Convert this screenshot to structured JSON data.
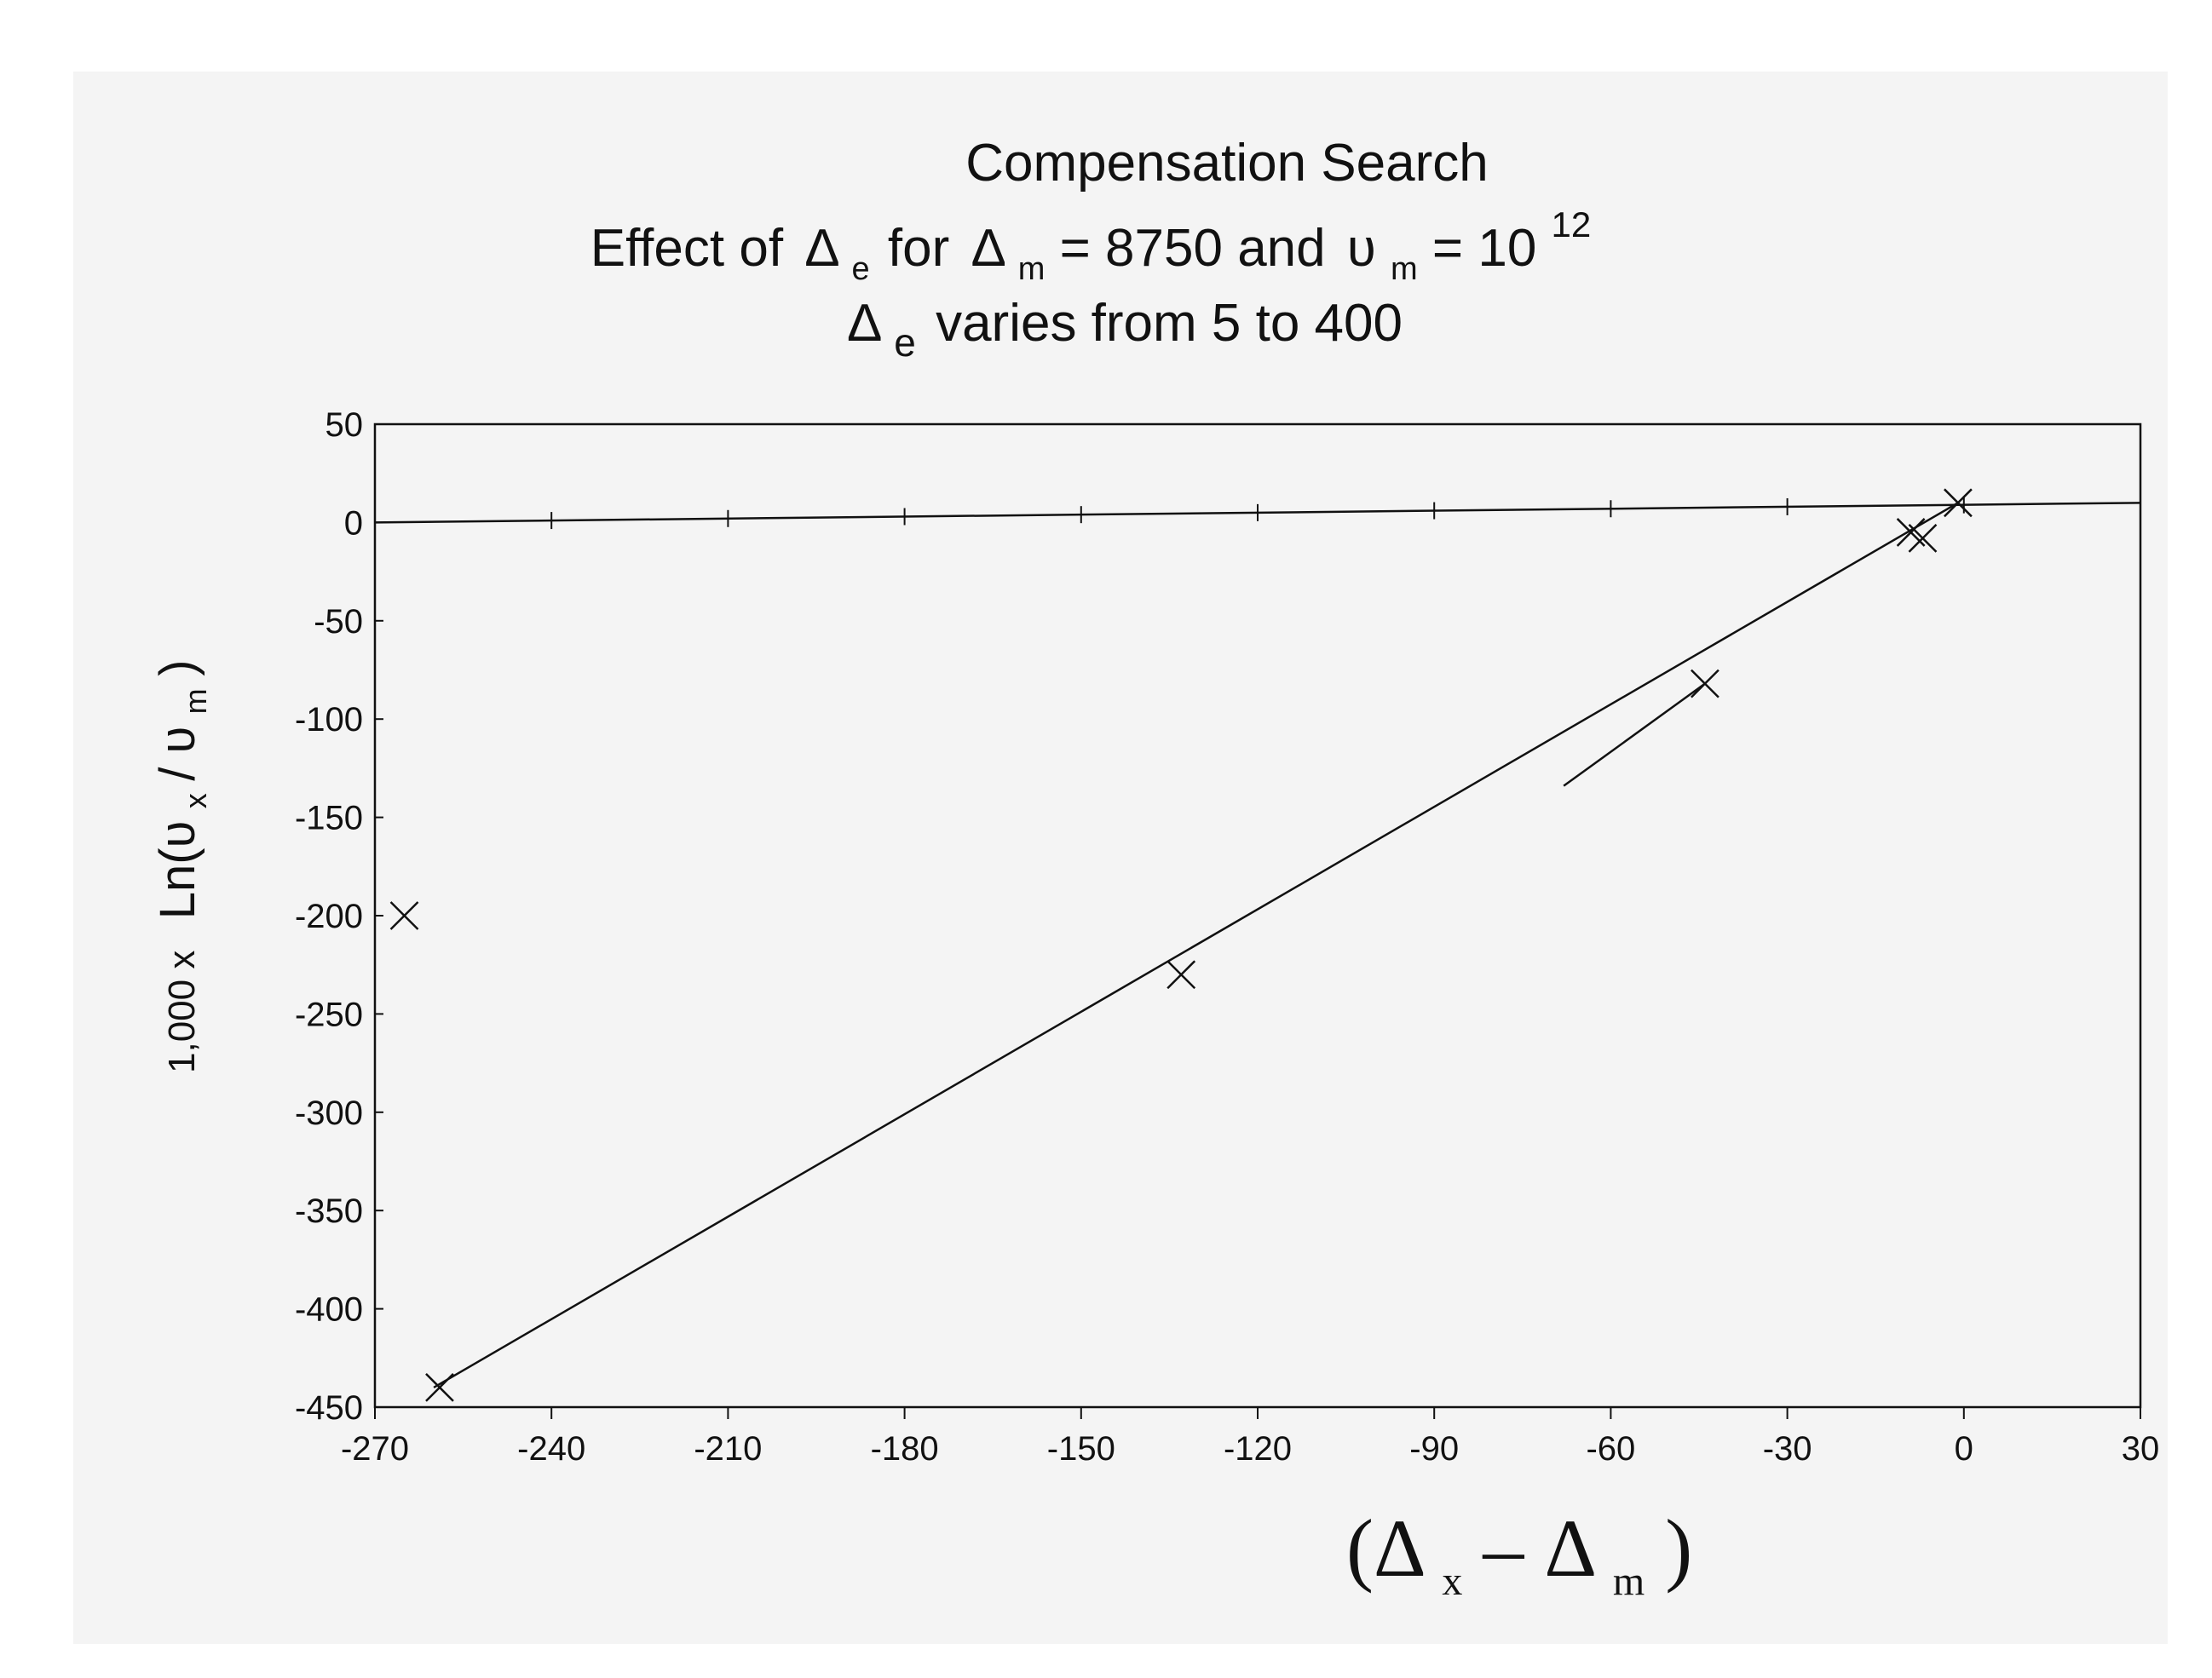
{
  "chart_data": {
    "type": "line",
    "title": {
      "line1": "Compensation Search",
      "line2": {
        "prefix": "Effect of",
        "delta_e": "Δ",
        "sub_e": "e",
        "for_word": "for",
        "delta_m": "Δ",
        "sub_m": "m",
        "eq1": "= 8750 and",
        "upsilon": "υ",
        "sub_m2": "m",
        "eq2": "= 10",
        "sup": "12"
      },
      "line3": {
        "delta": "Δ",
        "sub_e": "e",
        "text": "varies from 5 to 400"
      }
    },
    "xlabel": {
      "open": "(Δ",
      "sub_x": "x",
      "mid": "– Δ",
      "sub_m": "m",
      "close": ")"
    },
    "ylabel": {
      "prefix": "1,000 x",
      "ln": "Ln(υ",
      "sub_x": "x",
      "slash": "/ υ",
      "sub_m": "m",
      "close": ")"
    },
    "xlim": [
      -270,
      30
    ],
    "ylim": [
      -450,
      50
    ],
    "x_ticks": [
      -270,
      -240,
      -210,
      -180,
      -150,
      -120,
      -90,
      -60,
      -30,
      0,
      30
    ],
    "y_ticks": [
      50,
      0,
      -50,
      -100,
      -150,
      -200,
      -250,
      -300,
      -350,
      -400,
      -450
    ],
    "grid": false,
    "legend": "none",
    "series": [
      {
        "marker": "x",
        "points": [
          {
            "x": -265,
            "y": -200
          },
          {
            "x": -259,
            "y": -440
          },
          {
            "x": -133,
            "y": -230
          },
          {
            "x": -44,
            "y": -82
          },
          {
            "x": -9,
            "y": -5
          },
          {
            "x": -7,
            "y": -8
          },
          {
            "x": -1,
            "y": 10
          }
        ]
      }
    ],
    "fit_line": {
      "x": [
        -260,
        -1
      ],
      "y": [
        -440,
        10
      ]
    },
    "reference_line": {
      "x": [
        -270,
        30
      ],
      "y": [
        0,
        10
      ]
    },
    "arrow_line": {
      "x": [
        -68,
        -44
      ],
      "y": [
        -134,
        -82
      ]
    },
    "colors": {
      "ink": "#111111",
      "background": "#ffffff",
      "panel": "#f4f4f4"
    }
  }
}
